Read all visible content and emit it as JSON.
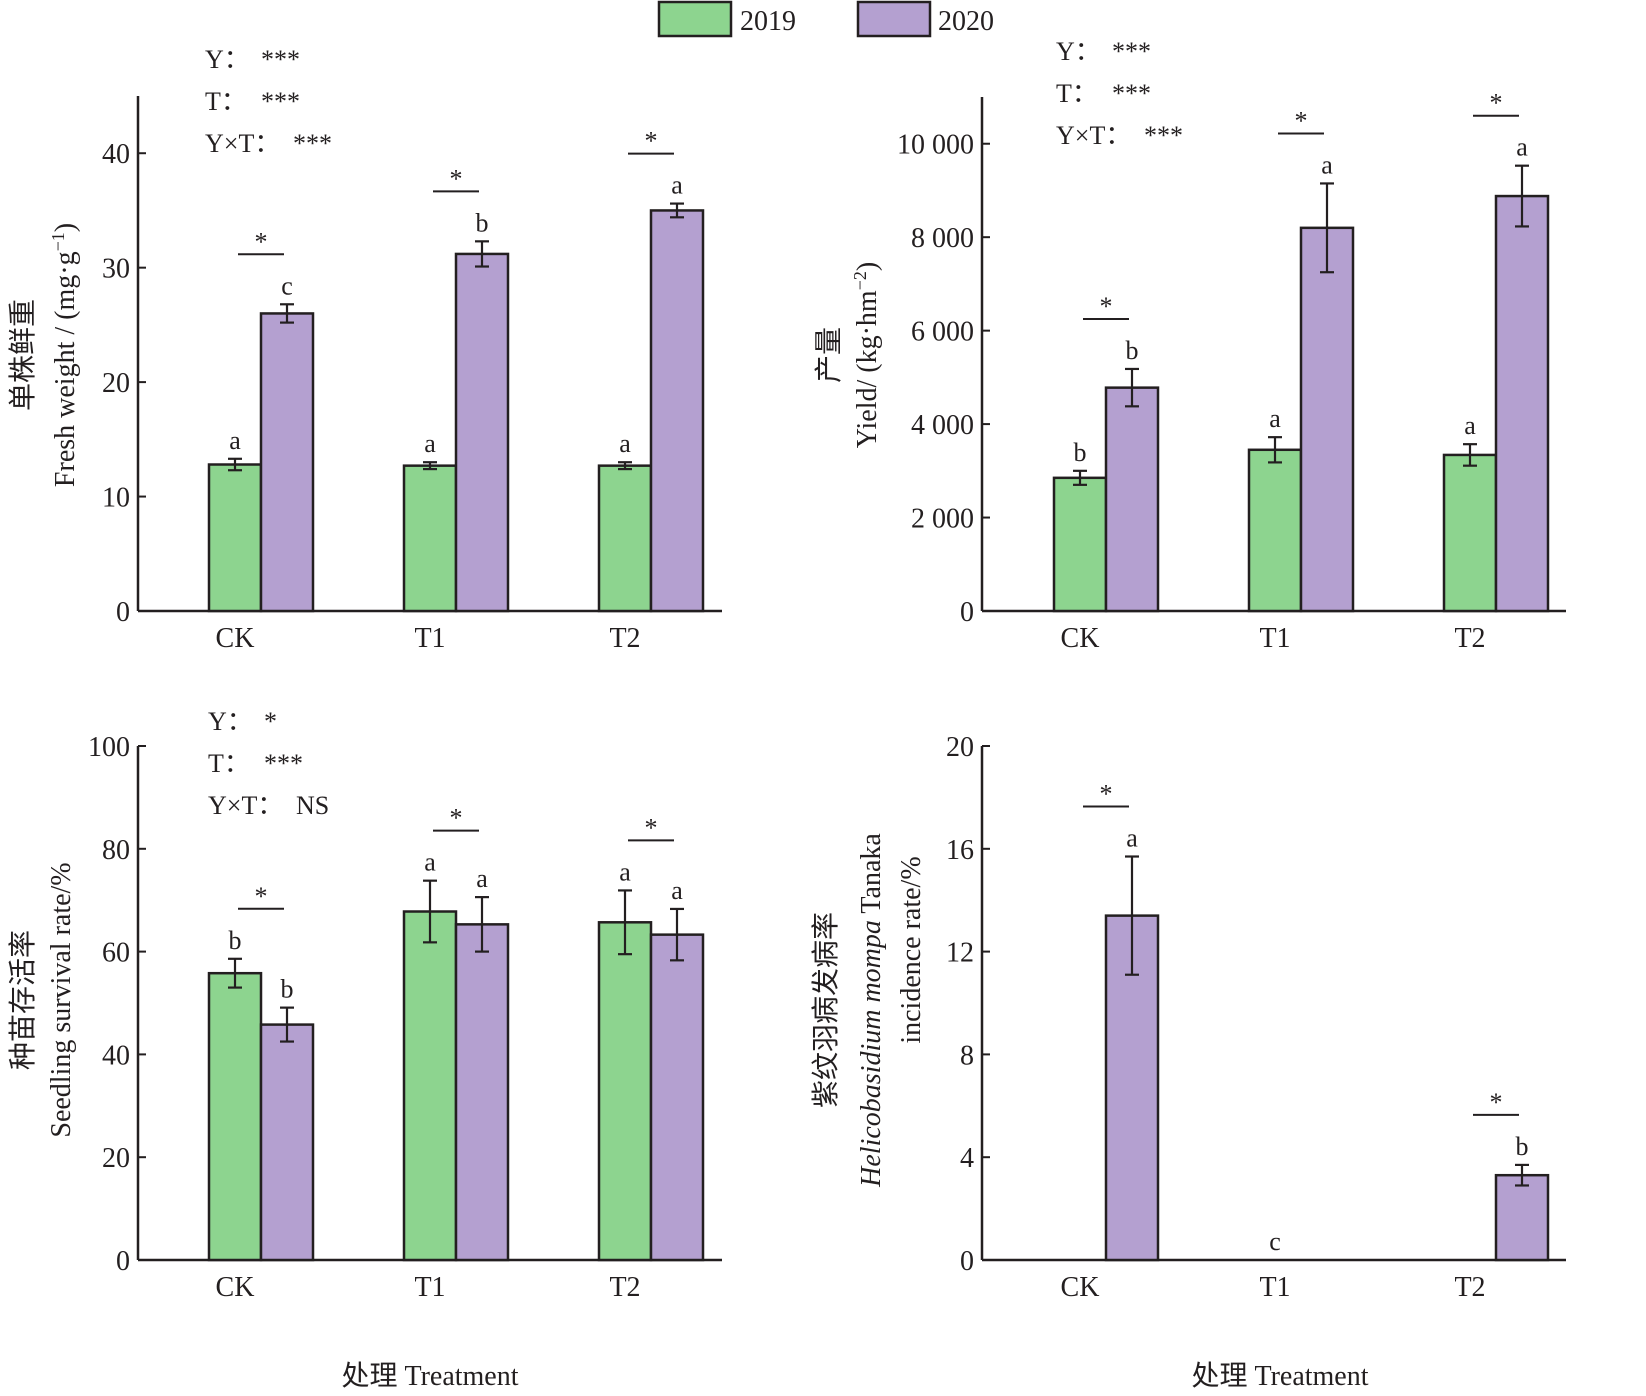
{
  "legend": {
    "items": [
      {
        "label": "2019",
        "color": "#8dd48f"
      },
      {
        "label": "2020",
        "color": "#b4a0d0"
      }
    ]
  },
  "colors": {
    "axis": "#231f20",
    "bar_stroke": "#231f20"
  },
  "chart_data": [
    {
      "id": "fresh-weight",
      "type": "bar",
      "ylabel_cn": "单株鲜重",
      "ylabel_en": "Fresh weight / (mg·g",
      "ylabel_sup": "−1",
      "ylabel_end": ")",
      "xlabel": "",
      "categories": [
        "CK",
        "T1",
        "T2"
      ],
      "ylim": [
        0,
        45
      ],
      "yticks": [
        0,
        10,
        20,
        30,
        40
      ],
      "ytick_labels": [
        "0",
        "10",
        "20",
        "30",
        "40"
      ],
      "series": [
        {
          "name": "2019",
          "values": [
            12.8,
            12.7,
            12.7
          ],
          "errors": [
            0.5,
            0.3,
            0.3
          ],
          "letters": [
            "a",
            "a",
            "a"
          ]
        },
        {
          "name": "2020",
          "values": [
            26.0,
            31.2,
            35.0
          ],
          "errors": [
            0.8,
            1.1,
            0.6
          ],
          "letters": [
            "c",
            "b",
            "a"
          ]
        }
      ],
      "year_significance": [
        "*",
        "*",
        "*"
      ],
      "anova": [
        {
          "label": "Y：",
          "value": "***"
        },
        {
          "label": "T：",
          "value": "***"
        },
        {
          "label": "Y×T：",
          "value": "***"
        }
      ]
    },
    {
      "id": "yield",
      "type": "bar",
      "ylabel_cn": "产量",
      "ylabel_en": "Yield/ (kg·hm",
      "ylabel_sup": "−2",
      "ylabel_end": ")",
      "xlabel": "",
      "categories": [
        "CK",
        "T1",
        "T2"
      ],
      "ylim": [
        0,
        11000
      ],
      "yticks": [
        0,
        2000,
        4000,
        6000,
        8000,
        10000
      ],
      "ytick_labels": [
        "0",
        "2 000",
        "4 000",
        "6 000",
        "8 000",
        "10 000"
      ],
      "series": [
        {
          "name": "2019",
          "values": [
            2850,
            3450,
            3340
          ],
          "errors": [
            150,
            270,
            230
          ],
          "letters": [
            "b",
            "a",
            "a"
          ]
        },
        {
          "name": "2020",
          "values": [
            4780,
            8200,
            8880
          ],
          "errors": [
            400,
            950,
            650
          ],
          "letters": [
            "b",
            "a",
            "a"
          ]
        }
      ],
      "year_significance": [
        "*",
        "*",
        "*"
      ],
      "anova": [
        {
          "label": "Y：",
          "value": "***"
        },
        {
          "label": "T：",
          "value": "***"
        },
        {
          "label": "Y×T：",
          "value": "***"
        }
      ]
    },
    {
      "id": "seedling-survival",
      "type": "bar",
      "ylabel_cn": "种苗存活率",
      "ylabel_en": "Seedling survival rate/%",
      "ylabel_sup": "",
      "ylabel_end": "",
      "xlabel": "处理 Treatment",
      "categories": [
        "CK",
        "T1",
        "T2"
      ],
      "ylim": [
        0,
        100
      ],
      "yticks": [
        0,
        20,
        40,
        60,
        80,
        100
      ],
      "ytick_labels": [
        "0",
        "20",
        "40",
        "60",
        "80",
        "100"
      ],
      "series": [
        {
          "name": "2019",
          "values": [
            55.8,
            67.8,
            65.7
          ],
          "errors": [
            2.8,
            6.0,
            6.2
          ],
          "letters": [
            "b",
            "a",
            "a"
          ]
        },
        {
          "name": "2020",
          "values": [
            45.8,
            65.3,
            63.3
          ],
          "errors": [
            3.3,
            5.3,
            5.0
          ],
          "letters": [
            "b",
            "a",
            "a"
          ]
        }
      ],
      "year_significance": [
        "*",
        "*",
        "*"
      ],
      "anova": [
        {
          "label": "Y：",
          "value": "*"
        },
        {
          "label": "T：",
          "value": "***"
        },
        {
          "label": "Y×T：",
          "value": "NS"
        }
      ]
    },
    {
      "id": "incidence-rate",
      "type": "bar",
      "ylabel_cn": "紫纹羽病发病率",
      "ylabel_en_italic": "Helicobasidium mompa",
      "ylabel_en": " Tanaka",
      "ylabel_line2": "incidence rate/%",
      "ylabel_sup": "",
      "ylabel_end": "",
      "xlabel": "处理 Treatment",
      "categories": [
        "CK",
        "T1",
        "T2"
      ],
      "ylim": [
        0,
        20
      ],
      "yticks": [
        0,
        4,
        8,
        12,
        16,
        20
      ],
      "ytick_labels": [
        "0",
        "4",
        "8",
        "12",
        "16",
        "20"
      ],
      "series": [
        {
          "name": "2019",
          "values": [
            0,
            0,
            0
          ],
          "errors": [
            0,
            0,
            0
          ],
          "letters": [
            "",
            "",
            ""
          ]
        },
        {
          "name": "2020",
          "values": [
            13.4,
            0,
            3.3
          ],
          "errors": [
            2.3,
            0,
            0.4
          ],
          "letters": [
            "a",
            "c",
            "b"
          ]
        }
      ],
      "year_significance": [
        "*",
        "",
        "*"
      ],
      "category_letter_only": [
        false,
        true,
        false
      ],
      "anova": []
    }
  ]
}
